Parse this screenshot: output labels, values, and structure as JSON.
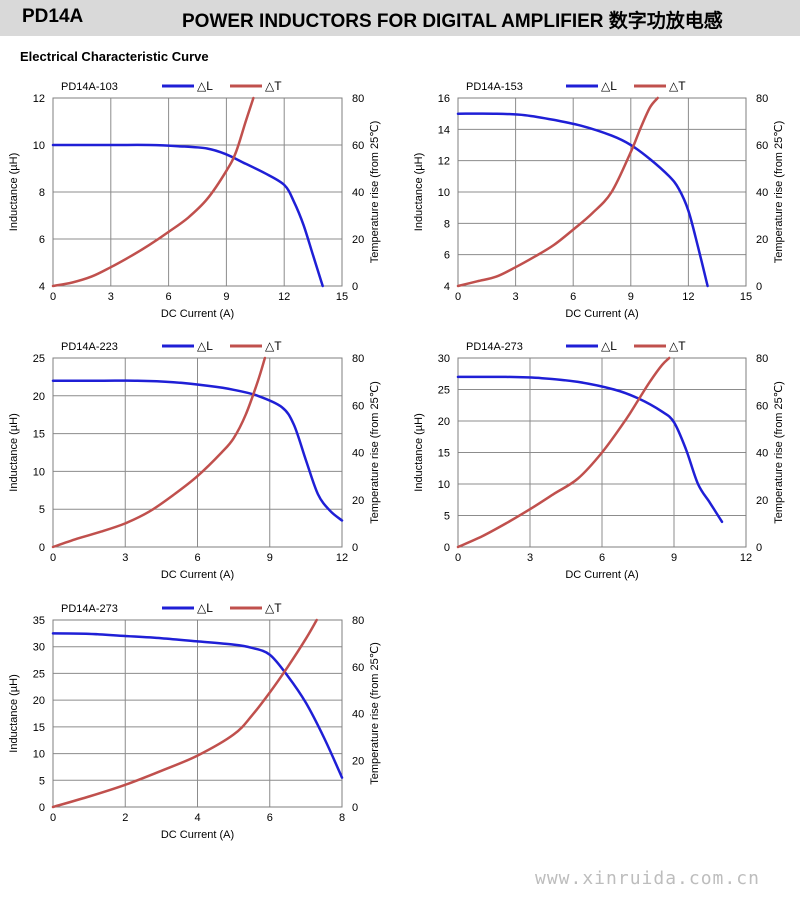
{
  "header": {
    "part_number": "PD14A",
    "title": "POWER INDUCTORS FOR DIGITAL AMPLIFIER  数字功放电感"
  },
  "section_title": "Electrical Characteristic Curve",
  "watermark": "www.xinruida.com.cn",
  "colors": {
    "inductance": "#1f1fd6",
    "temperature": "#c0504d",
    "grid": "#8c8c8c",
    "header_bg": "#d9d9d9"
  },
  "chart_data": [
    {
      "type": "line",
      "title": "PD14A-103",
      "xlabel": "DC Current (A)",
      "ylabel": "Inductance (µH)",
      "y2label": "Temperature rise (from 25℃)",
      "xlim": [
        0,
        15
      ],
      "ylim": [
        4,
        12
      ],
      "y2lim": [
        0,
        80
      ],
      "xticks": [
        "0",
        "3",
        "6",
        "9",
        "12",
        "15"
      ],
      "yticks": [
        "4",
        "6",
        "8",
        "10",
        "12"
      ],
      "y2ticks": [
        "0",
        "20",
        "40",
        "60",
        "80"
      ],
      "legend": [
        "△L",
        "△T"
      ],
      "legend_position": "top",
      "grid": true,
      "series": [
        {
          "name": "△L",
          "axis": "left",
          "x": [
            0,
            3,
            5,
            6.5,
            8,
            9,
            10,
            11,
            12,
            12.5,
            13,
            13.5,
            14
          ],
          "y": [
            10,
            10,
            10,
            9.95,
            9.85,
            9.6,
            9.2,
            8.8,
            8.3,
            7.6,
            6.6,
            5.3,
            4
          ]
        },
        {
          "name": "△T",
          "axis": "right",
          "x": [
            0,
            1,
            2,
            3,
            4,
            5,
            6,
            7,
            8,
            9,
            9.5,
            10,
            10.4
          ],
          "y": [
            0,
            1.5,
            4,
            8,
            12.5,
            17.5,
            23,
            29,
            37,
            49,
            57,
            70,
            80
          ]
        }
      ]
    },
    {
      "type": "line",
      "title": "PD14A-153",
      "xlabel": "DC Current (A)",
      "ylabel": "Inductance (µH)",
      "y2label": "Temperature rise (from 25℃)",
      "xlim": [
        0,
        15
      ],
      "ylim": [
        4,
        16
      ],
      "y2lim": [
        0,
        80
      ],
      "xticks": [
        "0",
        "3",
        "6",
        "9",
        "12",
        "15"
      ],
      "yticks": [
        "4",
        "6",
        "8",
        "10",
        "12",
        "14",
        "16"
      ],
      "y2ticks": [
        "0",
        "20",
        "40",
        "60",
        "80"
      ],
      "legend": [
        "△L",
        "△T"
      ],
      "legend_position": "top",
      "grid": true,
      "series": [
        {
          "name": "△L",
          "axis": "left",
          "x": [
            0,
            2,
            3.5,
            5,
            6.5,
            8,
            9,
            10,
            11,
            11.5,
            12,
            12.5,
            13
          ],
          "y": [
            15,
            15,
            14.9,
            14.6,
            14.2,
            13.6,
            13,
            12.1,
            11,
            10.2,
            8.8,
            6.5,
            4
          ]
        },
        {
          "name": "△T",
          "axis": "right",
          "x": [
            0,
            1,
            2,
            3,
            4,
            5,
            6,
            7,
            8,
            9,
            9.5,
            10,
            10.4
          ],
          "y": [
            0,
            2,
            4,
            8,
            12.5,
            17.5,
            24,
            31,
            40,
            57,
            67,
            76,
            80
          ]
        }
      ]
    },
    {
      "type": "line",
      "title": "PD14A-223",
      "xlabel": "DC Current (A)",
      "ylabel": "Inductance (µH)",
      "y2label": "Temperature rise (from 25℃)",
      "xlim": [
        0,
        12
      ],
      "ylim": [
        0,
        25
      ],
      "y2lim": [
        0,
        80
      ],
      "xticks": [
        "0",
        "3",
        "6",
        "9",
        "12"
      ],
      "yticks": [
        "0",
        "5",
        "10",
        "15",
        "20",
        "25"
      ],
      "y2ticks": [
        "0",
        "20",
        "40",
        "60",
        "80"
      ],
      "legend": [
        "△L",
        "△T"
      ],
      "legend_position": "top",
      "grid": true,
      "series": [
        {
          "name": "△L",
          "axis": "left",
          "x": [
            0,
            2,
            3.5,
            5,
            6.5,
            7.5,
            8.5,
            9.5,
            10,
            10.5,
            11,
            11.5,
            12
          ],
          "y": [
            22,
            22,
            22,
            21.8,
            21.3,
            20.8,
            20,
            18.5,
            16.2,
            11.5,
            7,
            4.8,
            3.5
          ]
        },
        {
          "name": "△T",
          "axis": "right",
          "x": [
            0,
            1,
            2,
            3,
            4,
            5,
            6,
            7,
            7.5,
            8,
            8.5,
            8.8
          ],
          "y": [
            0,
            3.5,
            6.5,
            10,
            15,
            22,
            30,
            40,
            46,
            56,
            70,
            80
          ]
        }
      ]
    },
    {
      "type": "line",
      "title": "PD14A-273",
      "xlabel": "DC Current (A)",
      "ylabel": "Inductance (µH)",
      "y2label": "Temperature rise (from 25℃)",
      "xlim": [
        0,
        12
      ],
      "ylim": [
        0,
        30
      ],
      "y2lim": [
        0,
        80
      ],
      "xticks": [
        "0",
        "3",
        "6",
        "9",
        "12"
      ],
      "yticks": [
        "0",
        "5",
        "10",
        "15",
        "20",
        "25",
        "30"
      ],
      "y2ticks": [
        "0",
        "20",
        "40",
        "60",
        "80"
      ],
      "legend": [
        "△L",
        "△T"
      ],
      "legend_position": "top",
      "grid": true,
      "series": [
        {
          "name": "△L",
          "axis": "left",
          "x": [
            0,
            2,
            3.5,
            5,
            6.5,
            7.5,
            8.5,
            9,
            9.5,
            10,
            10.5,
            11
          ],
          "y": [
            27,
            27,
            26.8,
            26.2,
            25,
            23.6,
            21.5,
            19.8,
            15.5,
            10,
            7,
            4
          ]
        },
        {
          "name": "△T",
          "axis": "right",
          "x": [
            0,
            1,
            2,
            3,
            4,
            5,
            6,
            7,
            7.5,
            8,
            8.5,
            8.8
          ],
          "y": [
            0,
            4.5,
            10,
            16,
            22.5,
            29,
            40,
            54,
            62,
            70,
            77,
            80
          ]
        }
      ]
    },
    {
      "type": "line",
      "title": "PD14A-273",
      "xlabel": "DC Current (A)",
      "ylabel": "Inductance (µH)",
      "y2label": "Temperature rise (from 25℃)",
      "xlim": [
        0,
        8
      ],
      "ylim": [
        0,
        35
      ],
      "y2lim": [
        0,
        80
      ],
      "xticks": [
        "0",
        "2",
        "4",
        "6",
        "8"
      ],
      "yticks": [
        "0",
        "5",
        "10",
        "15",
        "20",
        "25",
        "30",
        "35"
      ],
      "y2ticks": [
        "0",
        "20",
        "40",
        "60",
        "80"
      ],
      "legend": [
        "△L",
        "△T"
      ],
      "legend_position": "top",
      "grid": true,
      "series": [
        {
          "name": "△L",
          "axis": "left",
          "x": [
            0,
            1,
            2,
            3,
            4,
            5,
            5.5,
            6,
            6.5,
            7,
            7.5,
            8
          ],
          "y": [
            32.5,
            32.4,
            32,
            31.6,
            31,
            30.4,
            29.8,
            28.5,
            24.5,
            19.5,
            13,
            5.5
          ]
        },
        {
          "name": "△T",
          "axis": "right",
          "x": [
            0,
            1,
            2,
            3,
            4,
            5,
            5.5,
            6,
            6.5,
            7,
            7.3
          ],
          "y": [
            0,
            4.5,
            9.5,
            15.5,
            22,
            31,
            39,
            49,
            60,
            72,
            80
          ]
        }
      ]
    }
  ]
}
